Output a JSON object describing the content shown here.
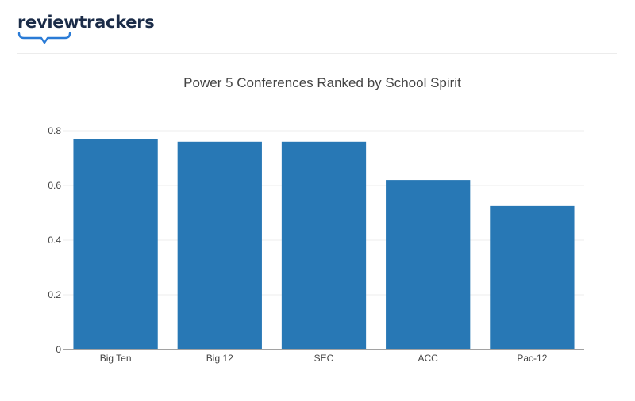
{
  "brand": {
    "name": "reviewtrackers",
    "color": "#1b2c48",
    "accent": "#2a7bd6"
  },
  "chart_data": {
    "type": "bar",
    "title": "Power 5 Conferences Ranked by School Spirit",
    "categories": [
      "Big Ten",
      "Big 12",
      "SEC",
      "ACC",
      "Pac-12"
    ],
    "values": [
      0.77,
      0.76,
      0.76,
      0.62,
      0.525
    ],
    "xlabel": "",
    "ylabel": "",
    "ylim": [
      0,
      0.8
    ],
    "yticks": [
      "0",
      "0.2",
      "0.4",
      "0.6",
      "0.8"
    ],
    "bar_color": "#2878b5",
    "grid": true,
    "legend": "none"
  }
}
